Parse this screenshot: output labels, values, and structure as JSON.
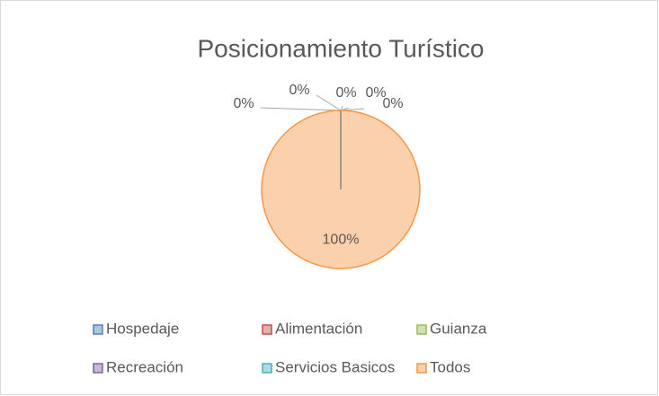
{
  "chart_data": {
    "type": "pie",
    "title": "Posicionamiento Turístico",
    "categories": [
      "Hospedaje",
      "Alimentación",
      "Guianza",
      "Recreación",
      "Servicios Basicos",
      "Todos"
    ],
    "values": [
      0,
      0,
      0,
      0,
      0,
      100
    ],
    "value_labels": [
      "0%",
      "0%",
      "0%",
      "0%",
      "0%",
      "100%"
    ],
    "colors": [
      "#4f81bd",
      "#c0504d",
      "#9bbb59",
      "#8064a2",
      "#4bacc6",
      "#f79646"
    ],
    "legend": "bottom"
  }
}
